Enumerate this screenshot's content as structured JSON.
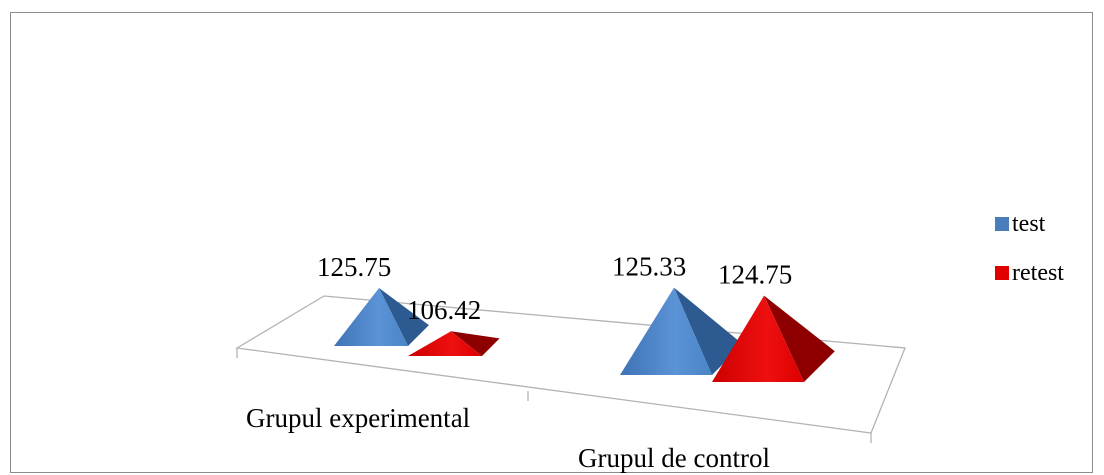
{
  "chart_data": {
    "type": "bar",
    "style": "3d-pyramid",
    "categories": [
      "Grupul experimental",
      "Grupul de control"
    ],
    "series": [
      {
        "name": "test",
        "values": [
          125.75,
          125.33
        ],
        "color": "#4a7ebb"
      },
      {
        "name": "retest",
        "values": [
          106.42,
          124.75
        ],
        "color": "#e00000"
      }
    ],
    "data_labels": [
      [
        "125.75",
        "125.33"
      ],
      [
        "106.42",
        "124.75"
      ]
    ],
    "legend": "right",
    "grid": false,
    "title": "",
    "xlabel": "",
    "ylabel": ""
  }
}
